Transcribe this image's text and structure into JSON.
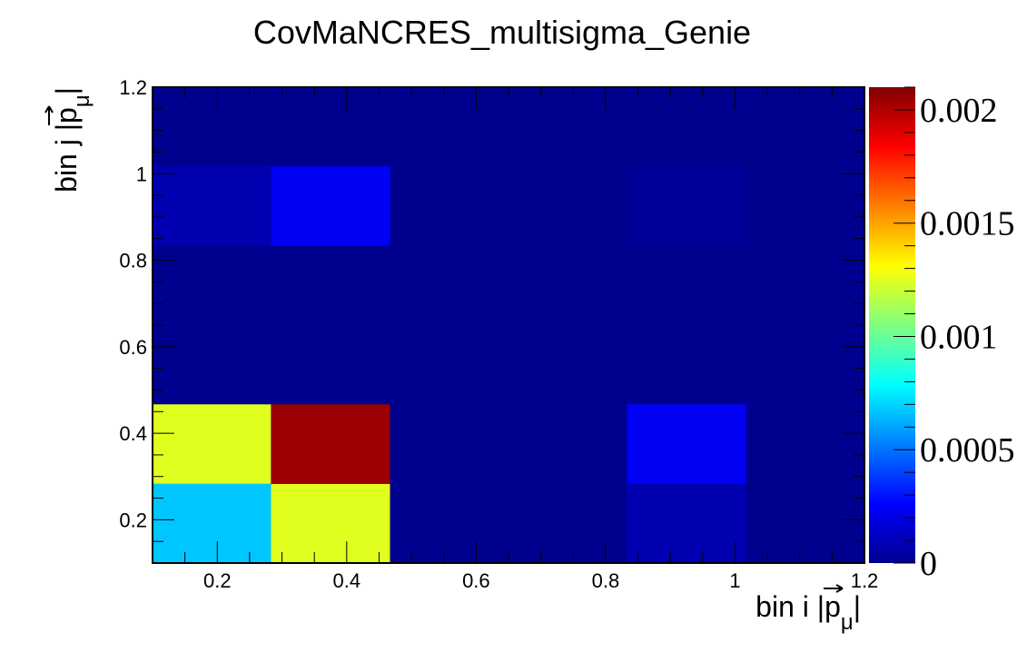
{
  "chart_data": {
    "type": "heatmap",
    "title": "CovMaNCRES_multisigma_Genie",
    "xlabel": "bin i |p⃗_μ|",
    "ylabel": "bin j |p⃗_μ|",
    "xlabel_parts": {
      "prefix": "bin i |",
      "symbol": "p",
      "subscript": "μ",
      "suffix": "|"
    },
    "ylabel_parts": {
      "prefix": "bin j |",
      "symbol": "p",
      "subscript": "μ",
      "suffix": "|"
    },
    "xlim": [
      0.1,
      1.2
    ],
    "ylim": [
      0.1,
      1.2
    ],
    "x_ticks": [
      "0.2",
      "0.4",
      "0.6",
      "0.8",
      "1",
      "1.2"
    ],
    "y_ticks": [
      "0.2",
      "0.4",
      "0.6",
      "0.8",
      "1",
      "1.2"
    ],
    "x_bin_edges": [
      0.1,
      0.283,
      0.467,
      0.65,
      0.833,
      1.017,
      1.2
    ],
    "y_bin_edges": [
      0.1,
      0.283,
      0.467,
      0.65,
      0.833,
      1.017,
      1.2
    ],
    "z": [
      [
        0.00067,
        0.00125,
        0.0,
        0.0,
        8e-05,
        0.0
      ],
      [
        0.00125,
        0.00204,
        0.0,
        0.0,
        0.00024,
        0.0
      ],
      [
        0.0,
        0.0,
        0.0,
        0.0,
        0.0,
        0.0
      ],
      [
        0.0,
        0.0,
        0.0,
        0.0,
        0.0,
        0.0
      ],
      [
        8e-05,
        0.00024,
        0.0,
        0.0,
        2e-05,
        0.0
      ],
      [
        0.0,
        0.0,
        0.0,
        0.0,
        0.0,
        0.0
      ]
    ],
    "zlim": [
      0,
      0.0021
    ],
    "colorbar_ticks": [
      "0",
      "0.0005",
      "0.001",
      "0.0015",
      "0.002"
    ],
    "colorbar_tick_values": [
      0,
      0.0005,
      0.001,
      0.0015,
      0.002
    ],
    "colormap": "jet",
    "grid": false
  }
}
